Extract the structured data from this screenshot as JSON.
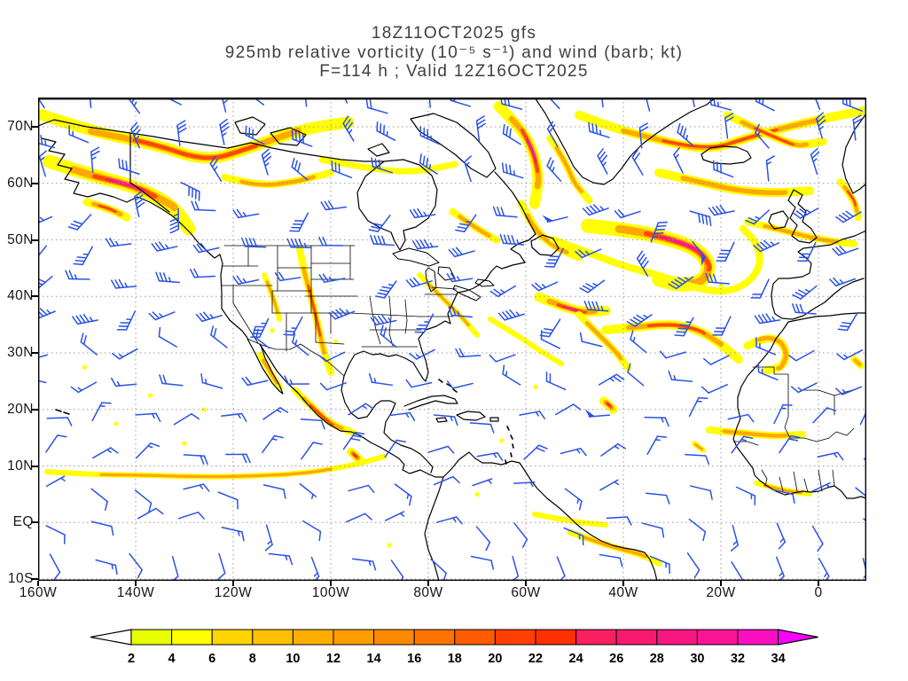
{
  "title": {
    "line1": "18Z11OCT2025 gfs",
    "line2": "925mb relative vorticity (10⁻⁵ s⁻¹) and wind (barb; kt)",
    "line3": "F=114 h ; Valid 12Z16OCT2025"
  },
  "axes": {
    "lat_labels": [
      "70N",
      "60N",
      "50N",
      "40N",
      "30N",
      "20N",
      "10N",
      "EQ",
      "10S"
    ],
    "lon_labels": [
      "160W",
      "140W",
      "120W",
      "100W",
      "80W",
      "60W",
      "40W",
      "20W",
      "0"
    ]
  },
  "colorbar": {
    "tick_values": [
      2,
      4,
      6,
      8,
      10,
      12,
      14,
      16,
      18,
      20,
      22,
      24,
      26,
      28,
      30,
      32,
      34
    ],
    "segment_colors": [
      "#e8ff00",
      "#ffff00",
      "#ffd400",
      "#ffc000",
      "#ffae00",
      "#ff9c00",
      "#ff8a00",
      "#ff7400",
      "#ff5c00",
      "#ff4000",
      "#ff3000",
      "#f82060",
      "#f81a70",
      "#f81682",
      "#f81494",
      "#fa10c0"
    ],
    "underflow_color": "#ffffff",
    "overflow_color": "#ff00ff"
  },
  "chart_data": {
    "type": "map",
    "field": "925mb relative vorticity (10⁻⁵ s⁻¹)",
    "overlay": "wind (barb; kt)",
    "model": "gfs",
    "run": "18Z11OCT2025",
    "forecast_hour": 114,
    "valid": "12Z16OCT2025",
    "projection": {
      "type": "equirectangular",
      "lon_min": -160,
      "lon_max": 9.8,
      "lat_min": -10.3,
      "lat_max": 75.2
    },
    "grid": {
      "lon_step_deg": 20,
      "lat_step_deg": 10,
      "style": "dotted",
      "color": "#9a9a9a"
    },
    "colors": {
      "coast": "#000000",
      "barb": "#2b52e6",
      "levels": {
        "2": "#ffff00",
        "8": "#ffa800",
        "16": "#ff4800",
        "24": "#f81878",
        "30": "#fa10c8"
      }
    },
    "wind_regimes": [
      {
        "lat_min": 60,
        "lat_max": 76,
        "from": "NW-N",
        "speed_kt": [
          15,
          38
        ]
      },
      {
        "lat_min": 35,
        "lat_max": 60,
        "from": "W-SW",
        "speed_kt": [
          20,
          48
        ]
      },
      {
        "lat_min": 22,
        "lat_max": 35,
        "from": "W-NW",
        "speed_kt": [
          8,
          20
        ]
      },
      {
        "lat_min": 8,
        "lat_max": 22,
        "from": "NE",
        "speed_kt": [
          10,
          20
        ]
      },
      {
        "lat_min": 0,
        "lat_max": 8,
        "from": "E",
        "speed_kt": [
          5,
          15
        ]
      },
      {
        "lat_min": -10.3,
        "lat_max": 0,
        "from": "SE",
        "speed_kt": [
          8,
          16
        ]
      }
    ],
    "vortices": [
      {
        "lon": -28.5,
        "lat": 47.5,
        "radius_deg": 10,
        "name": "north-atlantic-low"
      },
      {
        "lon": -43,
        "lat": 21,
        "radius_deg": 4,
        "name": "tropical-atlantic-cyclone"
      },
      {
        "lon": -95.6,
        "lat": 11.8,
        "radius_deg": 3,
        "name": "epac-disturbance"
      },
      {
        "lon": -133,
        "lat": 55.5,
        "radius_deg": 7,
        "name": "gulf-of-alaska-low"
      }
    ],
    "vorticity_features": [
      {
        "id": "alaska-arctic-arc",
        "max": 16,
        "w": 13,
        "path": [
          [
            -159.1,
            72.1
          ],
          [
            -149.1,
            69.2
          ],
          [
            -136.4,
            67
          ],
          [
            -125.5,
            63.9
          ],
          [
            -117.3,
            66.1
          ],
          [
            -105.5,
            69.7
          ],
          [
            -96.4,
            70.8
          ]
        ]
      },
      {
        "id": "gulf-alaska-front",
        "max": 34,
        "w": 15,
        "path": [
          [
            -157.8,
            63.9
          ],
          [
            -149.1,
            61.4
          ],
          [
            -140,
            59.5
          ],
          [
            -132.4,
            56.1
          ],
          [
            -129.1,
            52
          ]
        ]
      },
      {
        "id": "alaska-inner-spot",
        "max": 22,
        "w": 9,
        "path": [
          [
            -150,
            56.7
          ],
          [
            -145.5,
            55.6
          ],
          [
            -141.8,
            54
          ]
        ]
      },
      {
        "id": "yukon-band",
        "max": 8,
        "w": 8,
        "path": [
          [
            -121.8,
            61.1
          ],
          [
            -114.5,
            59.5
          ],
          [
            -107.3,
            60.3
          ],
          [
            -100,
            61.9
          ]
        ]
      },
      {
        "id": "canada-patches",
        "max": 6,
        "w": 7,
        "path": [
          [
            -101.8,
            64.2
          ],
          [
            -92.7,
            62.7
          ],
          [
            -83.6,
            61.9
          ],
          [
            -74.5,
            63.4
          ]
        ]
      },
      {
        "id": "baffin-band",
        "max": 30,
        "w": 12,
        "path": [
          [
            -65.5,
            73.6
          ],
          [
            -60.9,
            69.7
          ],
          [
            -58.5,
            65.8
          ],
          [
            -57.3,
            61.1
          ],
          [
            -58.2,
            56.4
          ]
        ]
      },
      {
        "id": "labrador-arm",
        "max": 12,
        "w": 9,
        "path": [
          [
            -60.9,
            56.4
          ],
          [
            -58.2,
            51.7
          ],
          [
            -53.6,
            48.5
          ],
          [
            -49.1,
            47
          ]
        ]
      },
      {
        "id": "greenland-east-band",
        "max": 18,
        "w": 10,
        "path": [
          [
            -49.1,
            72.1
          ],
          [
            -41.8,
            69.7
          ],
          [
            -32.7,
            67.7
          ],
          [
            -22.7,
            65.8
          ],
          [
            -14.5,
            68.1
          ],
          [
            -5.5,
            70.2
          ],
          [
            4.5,
            72.1
          ],
          [
            9.1,
            72.8
          ]
        ]
      },
      {
        "id": "topright-streak",
        "max": 20,
        "w": 9,
        "path": [
          [
            -18.7,
            72.1
          ],
          [
            -10.9,
            68.9
          ],
          [
            -4.5,
            66.6
          ],
          [
            0.9,
            67.4
          ]
        ]
      },
      {
        "id": "norway-coast-streak",
        "max": 20,
        "w": 8,
        "path": [
          [
            4.5,
            60.3
          ],
          [
            7.3,
            57.2
          ],
          [
            8.2,
            54
          ]
        ]
      },
      {
        "id": "iceland-south-band",
        "max": 14,
        "w": 10,
        "path": [
          [
            -32.7,
            61.9
          ],
          [
            -24.5,
            60.3
          ],
          [
            -16.4,
            58.7
          ],
          [
            -9.1,
            58.3
          ],
          [
            -1.8,
            58.7
          ]
        ]
      },
      {
        "id": "atlantic-low-core",
        "max": 30,
        "w": 16,
        "path": [
          [
            -47.3,
            52.5
          ],
          [
            -38.2,
            51.7
          ],
          [
            -30,
            50.1
          ],
          [
            -24.5,
            48.2
          ],
          [
            -22.2,
            45.4
          ],
          [
            -23.6,
            42.7
          ],
          [
            -28.2,
            41.9
          ],
          [
            -32.7,
            43
          ]
        ]
      },
      {
        "id": "atlantic-low-ring",
        "max": 6,
        "w": 8,
        "path": [
          [
            -54.5,
            50.1
          ],
          [
            -47.3,
            47.8
          ],
          [
            -40,
            45.4
          ],
          [
            -32.7,
            43.8
          ],
          [
            -25.5,
            41.5
          ],
          [
            -19.1,
            40.7
          ],
          [
            -14.5,
            42.3
          ],
          [
            -11.8,
            45.4
          ],
          [
            -12.4,
            49.3
          ],
          [
            -15.5,
            52
          ]
        ]
      },
      {
        "id": "newfoundland-band",
        "max": 30,
        "w": 11,
        "path": [
          [
            -57.3,
            39.9
          ],
          [
            -52.7,
            38.3
          ],
          [
            -48.2,
            37.2
          ],
          [
            -43.6,
            37.5
          ]
        ]
      },
      {
        "id": "band-40n-arm",
        "max": 10,
        "w": 8,
        "path": [
          [
            -49.1,
            36.8
          ],
          [
            -45.5,
            33.6
          ],
          [
            -41.8,
            30.5
          ],
          [
            -39.1,
            27.4
          ]
        ]
      },
      {
        "id": "subtropic-hammer",
        "max": 22,
        "w": 10,
        "path": [
          [
            -43.6,
            34.1
          ],
          [
            -36.4,
            34.7
          ],
          [
            -30,
            35.2
          ],
          [
            -24.5,
            34.1
          ],
          [
            -20,
            31.6
          ],
          [
            -16.4,
            28.9
          ]
        ]
      },
      {
        "id": "madeira-swirl",
        "max": 14,
        "w": 9,
        "path": [
          [
            -14.5,
            31.3
          ],
          [
            -10.9,
            32.9
          ],
          [
            -7.6,
            32.1
          ],
          [
            -6.4,
            29.7
          ],
          [
            -7.6,
            27.4
          ],
          [
            -10.9,
            26.9
          ]
        ]
      },
      {
        "id": "tc-21n-43w",
        "max": 32,
        "w": 10,
        "path": [
          [
            -44,
            21.5
          ],
          [
            -42.9,
            20.8
          ],
          [
            -42.1,
            20
          ]
        ]
      },
      {
        "id": "itcz-pacific",
        "max": 10,
        "w": 6,
        "path": [
          [
            -158.2,
            9
          ],
          [
            -149.1,
            8.5
          ],
          [
            -138.2,
            8.4
          ],
          [
            -127.3,
            8.1
          ],
          [
            -116.4,
            8.2
          ],
          [
            -105.5,
            8.7
          ],
          [
            -95.5,
            10.1
          ],
          [
            -89.1,
            11.7
          ]
        ]
      },
      {
        "id": "epac-disturbance",
        "max": 24,
        "w": 10,
        "path": [
          [
            -95.8,
            12.5
          ],
          [
            -94.9,
            11.8
          ],
          [
            -94.2,
            11.2
          ]
        ]
      },
      {
        "id": "mexico-coast-band",
        "max": 16,
        "w": 8,
        "path": [
          [
            -107.3,
            23.4
          ],
          [
            -103.6,
            20.3
          ],
          [
            -100,
            17.5
          ],
          [
            -95.5,
            15.9
          ]
        ]
      },
      {
        "id": "baja-band",
        "max": 12,
        "w": 7,
        "path": [
          [
            -114.5,
            29.7
          ],
          [
            -112.4,
            26.6
          ],
          [
            -110.4,
            23.8
          ]
        ]
      },
      {
        "id": "plains-filament",
        "max": 18,
        "w": 8,
        "path": [
          [
            -106.4,
            48.5
          ],
          [
            -105.5,
            44.6
          ],
          [
            -104,
            39.9
          ],
          [
            -102.7,
            35.2
          ],
          [
            -101.5,
            30.5
          ],
          [
            -100,
            26.6
          ]
        ]
      },
      {
        "id": "rockies-spots",
        "max": 10,
        "w": 6,
        "path": [
          [
            -113.6,
            43.8
          ],
          [
            -111.8,
            39.9
          ],
          [
            -110.5,
            36
          ]
        ]
      },
      {
        "id": "appalachian-band",
        "max": 8,
        "w": 6,
        "path": [
          [
            -81.8,
            43.8
          ],
          [
            -77.3,
            39.9
          ],
          [
            -73.1,
            36.3
          ],
          [
            -70,
            33.2
          ]
        ]
      },
      {
        "id": "gulfstream-band",
        "max": 6,
        "w": 6,
        "path": [
          [
            -67.3,
            36
          ],
          [
            -61.8,
            33.2
          ],
          [
            -57.3,
            30.5
          ],
          [
            -52.7,
            28.1
          ]
        ]
      },
      {
        "id": "sahel-band",
        "max": 10,
        "w": 8,
        "path": [
          [
            -22.4,
            16.4
          ],
          [
            -16.4,
            15.9
          ],
          [
            -9.1,
            15.3
          ],
          [
            -3.3,
            15.6
          ]
        ]
      },
      {
        "id": "algeria-spot",
        "max": 12,
        "w": 8,
        "path": [
          [
            7.3,
            28.9
          ],
          [
            8.7,
            27.8
          ]
        ]
      },
      {
        "id": "senegal-spots",
        "max": 8,
        "w": 6,
        "path": [
          [
            -25.5,
            14
          ],
          [
            -23.6,
            12.8
          ]
        ]
      },
      {
        "id": "guinea-coast-band",
        "max": 8,
        "w": 6,
        "path": [
          [
            -12.7,
            7
          ],
          [
            -7.3,
            5.7
          ],
          [
            -1.8,
            5.1
          ]
        ]
      },
      {
        "id": "brazil-band",
        "max": 10,
        "w": 7,
        "path": [
          [
            -50.9,
            -1.7
          ],
          [
            -43.6,
            -4
          ],
          [
            -36.4,
            -5.6
          ],
          [
            -32.7,
            -7.2
          ]
        ]
      },
      {
        "id": "equatorial-atl-band",
        "max": 6,
        "w": 6,
        "path": [
          [
            -58.2,
            1.5
          ],
          [
            -50.9,
            0.2
          ],
          [
            -43.6,
            -0.4
          ]
        ]
      },
      {
        "id": "davis-strait-band",
        "max": 10,
        "w": 8,
        "path": [
          [
            -55,
            68
          ],
          [
            -52,
            64
          ],
          [
            -50,
            60
          ],
          [
            -47,
            57
          ]
        ]
      },
      {
        "id": "quebec-band",
        "max": 8,
        "w": 8,
        "path": [
          [
            -75,
            55
          ],
          [
            -70,
            52
          ],
          [
            -66,
            50
          ]
        ]
      },
      {
        "id": "biscay-band",
        "max": 8,
        "w": 8,
        "path": [
          [
            -14.5,
            53.2
          ],
          [
            -7.3,
            51.7
          ],
          [
            0,
            50.1
          ],
          [
            7.3,
            49.3
          ]
        ]
      }
    ],
    "vorticity_specks": [
      [
        -150.5,
        27.5
      ],
      [
        -137,
        22.5
      ],
      [
        -144,
        17.5
      ],
      [
        -126,
        20
      ],
      [
        -112,
        34
      ],
      [
        -65,
        14.5
      ],
      [
        -58,
        24
      ],
      [
        -70,
        5
      ],
      [
        -88,
        -4
      ],
      [
        -20,
        42
      ],
      [
        -130,
        14
      ],
      [
        -99,
        32
      ]
    ]
  }
}
